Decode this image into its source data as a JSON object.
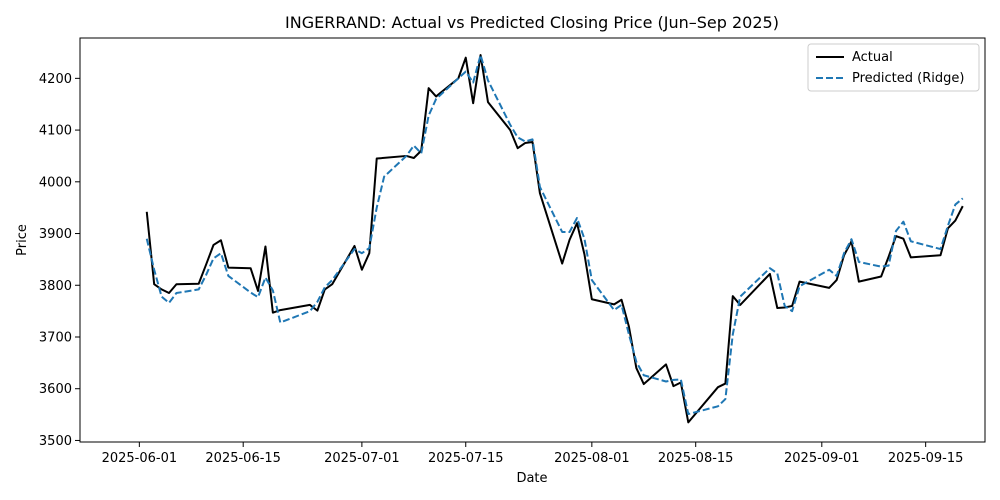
{
  "chart_data": {
    "type": "line",
    "title": "INGERRAND: Actual vs Predicted Closing Price (Jun–Sep 2025)",
    "xlabel": "Date",
    "ylabel": "Price",
    "xlim": [
      "2025-05-24",
      "2025-09-23"
    ],
    "ylim": [
      3497,
      4278
    ],
    "grid": false,
    "legend_position": "upper right",
    "x_ticks": [
      "2025-06-01",
      "2025-06-15",
      "2025-07-01",
      "2025-07-15",
      "2025-08-01",
      "2025-08-15",
      "2025-09-01",
      "2025-09-15"
    ],
    "y_ticks": [
      3500,
      3600,
      3700,
      3800,
      3900,
      4000,
      4100,
      4200
    ],
    "series": [
      {
        "name": "Actual",
        "color": "#000000",
        "style": "solid",
        "points": [
          [
            "2025-06-02",
            3942
          ],
          [
            "2025-06-03",
            3802
          ],
          [
            "2025-06-04",
            3792
          ],
          [
            "2025-06-05",
            3785
          ],
          [
            "2025-06-06",
            3802
          ],
          [
            "2025-06-09",
            3803
          ],
          [
            "2025-06-10",
            3840
          ],
          [
            "2025-06-11",
            3878
          ],
          [
            "2025-06-12",
            3887
          ],
          [
            "2025-06-13",
            3834
          ],
          [
            "2025-06-16",
            3833
          ],
          [
            "2025-06-17",
            3789
          ],
          [
            "2025-06-18",
            3875
          ],
          [
            "2025-06-19",
            3747
          ],
          [
            "2025-06-20",
            3752
          ],
          [
            "2025-06-24",
            3762
          ],
          [
            "2025-06-25",
            3751
          ],
          [
            "2025-06-26",
            3792
          ],
          [
            "2025-06-27",
            3802
          ],
          [
            "2025-06-30",
            3876
          ],
          [
            "2025-07-01",
            3830
          ],
          [
            "2025-07-02",
            3862
          ],
          [
            "2025-07-03",
            4045
          ],
          [
            "2025-07-07",
            4050
          ],
          [
            "2025-07-08",
            4046
          ],
          [
            "2025-07-09",
            4060
          ],
          [
            "2025-07-10",
            4181
          ],
          [
            "2025-07-11",
            4165
          ],
          [
            "2025-07-14",
            4200
          ],
          [
            "2025-07-15",
            4240
          ],
          [
            "2025-07-16",
            4152
          ],
          [
            "2025-07-17",
            4245
          ],
          [
            "2025-07-18",
            4154
          ],
          [
            "2025-07-21",
            4100
          ],
          [
            "2025-07-22",
            4065
          ],
          [
            "2025-07-23",
            4075
          ],
          [
            "2025-07-24",
            4077
          ],
          [
            "2025-07-25",
            3978
          ],
          [
            "2025-07-28",
            3842
          ],
          [
            "2025-07-29",
            3888
          ],
          [
            "2025-07-30",
            3920
          ],
          [
            "2025-07-31",
            3860
          ],
          [
            "2025-08-01",
            3773
          ],
          [
            "2025-08-04",
            3763
          ],
          [
            "2025-08-05",
            3772
          ],
          [
            "2025-08-06",
            3720
          ],
          [
            "2025-08-07",
            3640
          ],
          [
            "2025-08-08",
            3609
          ],
          [
            "2025-08-11",
            3647
          ],
          [
            "2025-08-12",
            3605
          ],
          [
            "2025-08-13",
            3612
          ],
          [
            "2025-08-14",
            3535
          ],
          [
            "2025-08-18",
            3603
          ],
          [
            "2025-08-19",
            3610
          ],
          [
            "2025-08-20",
            3779
          ],
          [
            "2025-08-21",
            3762
          ],
          [
            "2025-08-25",
            3822
          ],
          [
            "2025-08-26",
            3756
          ],
          [
            "2025-08-27",
            3757
          ],
          [
            "2025-08-28",
            3760
          ],
          [
            "2025-08-29",
            3807
          ],
          [
            "2025-09-02",
            3795
          ],
          [
            "2025-09-03",
            3810
          ],
          [
            "2025-09-04",
            3858
          ],
          [
            "2025-09-05",
            3885
          ],
          [
            "2025-09-06",
            3807
          ],
          [
            "2025-09-09",
            3817
          ],
          [
            "2025-09-10",
            3855
          ],
          [
            "2025-09-11",
            3895
          ],
          [
            "2025-09-12",
            3890
          ],
          [
            "2025-09-13",
            3854
          ],
          [
            "2025-09-17",
            3858
          ],
          [
            "2025-09-18",
            3910
          ],
          [
            "2025-09-19",
            3925
          ],
          [
            "2025-09-20",
            3953
          ]
        ]
      },
      {
        "name": "Predicted (Ridge)",
        "color": "#1f77b4",
        "style": "dashed",
        "points": [
          [
            "2025-06-02",
            3890
          ],
          [
            "2025-06-03",
            3830
          ],
          [
            "2025-06-04",
            3778
          ],
          [
            "2025-06-05",
            3766
          ],
          [
            "2025-06-06",
            3785
          ],
          [
            "2025-06-09",
            3792
          ],
          [
            "2025-06-10",
            3820
          ],
          [
            "2025-06-11",
            3852
          ],
          [
            "2025-06-12",
            3862
          ],
          [
            "2025-06-13",
            3818
          ],
          [
            "2025-06-16",
            3786
          ],
          [
            "2025-06-17",
            3777
          ],
          [
            "2025-06-18",
            3815
          ],
          [
            "2025-06-19",
            3790
          ],
          [
            "2025-06-20",
            3728
          ],
          [
            "2025-06-24",
            3750
          ],
          [
            "2025-06-25",
            3768
          ],
          [
            "2025-06-26",
            3796
          ],
          [
            "2025-06-27",
            3810
          ],
          [
            "2025-06-30",
            3870
          ],
          [
            "2025-07-01",
            3862
          ],
          [
            "2025-07-02",
            3872
          ],
          [
            "2025-07-03",
            3950
          ],
          [
            "2025-07-04",
            4010
          ],
          [
            "2025-07-07",
            4050
          ],
          [
            "2025-07-08",
            4070
          ],
          [
            "2025-07-09",
            4055
          ],
          [
            "2025-07-10",
            4128
          ],
          [
            "2025-07-11",
            4160
          ],
          [
            "2025-07-14",
            4200
          ],
          [
            "2025-07-15",
            4213
          ],
          [
            "2025-07-16",
            4192
          ],
          [
            "2025-07-17",
            4245
          ],
          [
            "2025-07-18",
            4196
          ],
          [
            "2025-07-21",
            4110
          ],
          [
            "2025-07-22",
            4086
          ],
          [
            "2025-07-23",
            4078
          ],
          [
            "2025-07-24",
            4082
          ],
          [
            "2025-07-25",
            3990
          ],
          [
            "2025-07-28",
            3903
          ],
          [
            "2025-07-29",
            3903
          ],
          [
            "2025-07-30",
            3930
          ],
          [
            "2025-07-31",
            3890
          ],
          [
            "2025-08-01",
            3810
          ],
          [
            "2025-08-04",
            3752
          ],
          [
            "2025-08-05",
            3762
          ],
          [
            "2025-08-06",
            3705
          ],
          [
            "2025-08-07",
            3652
          ],
          [
            "2025-08-08",
            3626
          ],
          [
            "2025-08-11",
            3614
          ],
          [
            "2025-08-12",
            3617
          ],
          [
            "2025-08-13",
            3618
          ],
          [
            "2025-08-14",
            3551
          ],
          [
            "2025-08-18",
            3566
          ],
          [
            "2025-08-19",
            3580
          ],
          [
            "2025-08-20",
            3705
          ],
          [
            "2025-08-21",
            3778
          ],
          [
            "2025-08-25",
            3833
          ],
          [
            "2025-08-26",
            3823
          ],
          [
            "2025-08-27",
            3760
          ],
          [
            "2025-08-28",
            3750
          ],
          [
            "2025-08-29",
            3798
          ],
          [
            "2025-09-02",
            3830
          ],
          [
            "2025-09-03",
            3818
          ],
          [
            "2025-09-04",
            3862
          ],
          [
            "2025-09-05",
            3889
          ],
          [
            "2025-09-06",
            3845
          ],
          [
            "2025-09-09",
            3836
          ],
          [
            "2025-09-10",
            3838
          ],
          [
            "2025-09-11",
            3905
          ],
          [
            "2025-09-12",
            3923
          ],
          [
            "2025-09-13",
            3885
          ],
          [
            "2025-09-17",
            3870
          ],
          [
            "2025-09-18",
            3915
          ],
          [
            "2025-09-19",
            3956
          ],
          [
            "2025-09-20",
            3968
          ]
        ]
      }
    ]
  }
}
